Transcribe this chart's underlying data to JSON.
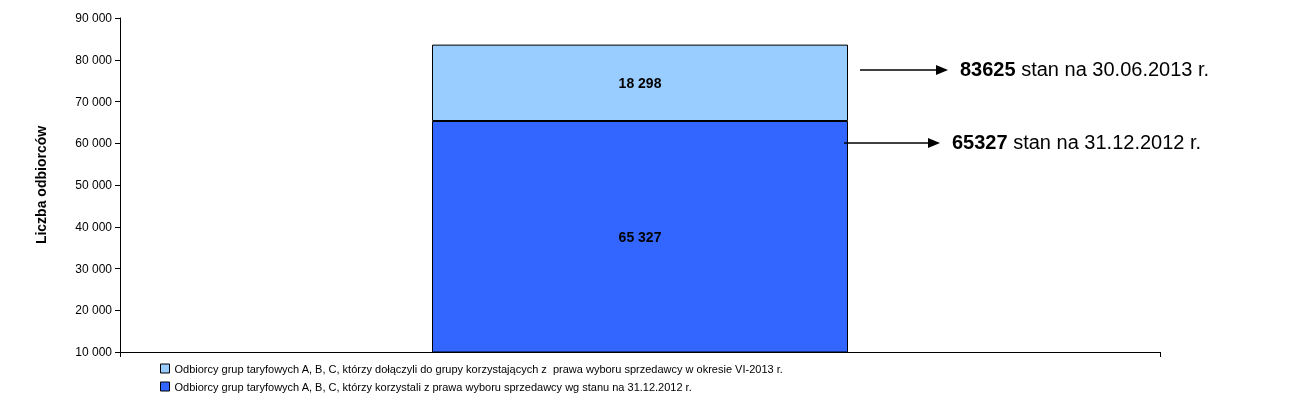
{
  "chart_data": {
    "type": "bar",
    "stacked": true,
    "ylabel": "Liczba odbiorców",
    "categories": [
      null
    ],
    "series": [
      {
        "name": "Odbiorcy grup taryfowych A, B, C, którzy korzystali z prawa wyboru sprzedawcy wg stanu na 31.12.2012 r.",
        "color": "#3366ff",
        "values": [
          65327
        ],
        "value_labels": [
          "65 327"
        ]
      },
      {
        "name": "Odbiorcy grup taryfowych A, B, C, którzy dołączyli do grupy korzystających z  prawa wyboru sprzedawcy w okresie VI-2013 r.",
        "color": "#99ccff",
        "values": [
          18298
        ],
        "value_labels": [
          "18 298"
        ]
      }
    ],
    "ylim": [
      10000,
      90000
    ],
    "yticks": [
      10000,
      20000,
      30000,
      40000,
      50000,
      60000,
      70000,
      80000,
      90000
    ],
    "grid": false,
    "legend": "bottom",
    "annotations": [
      "83625 stan na 30.06.2013 r.",
      "65327 stan na 31.12.2012 r."
    ]
  }
}
